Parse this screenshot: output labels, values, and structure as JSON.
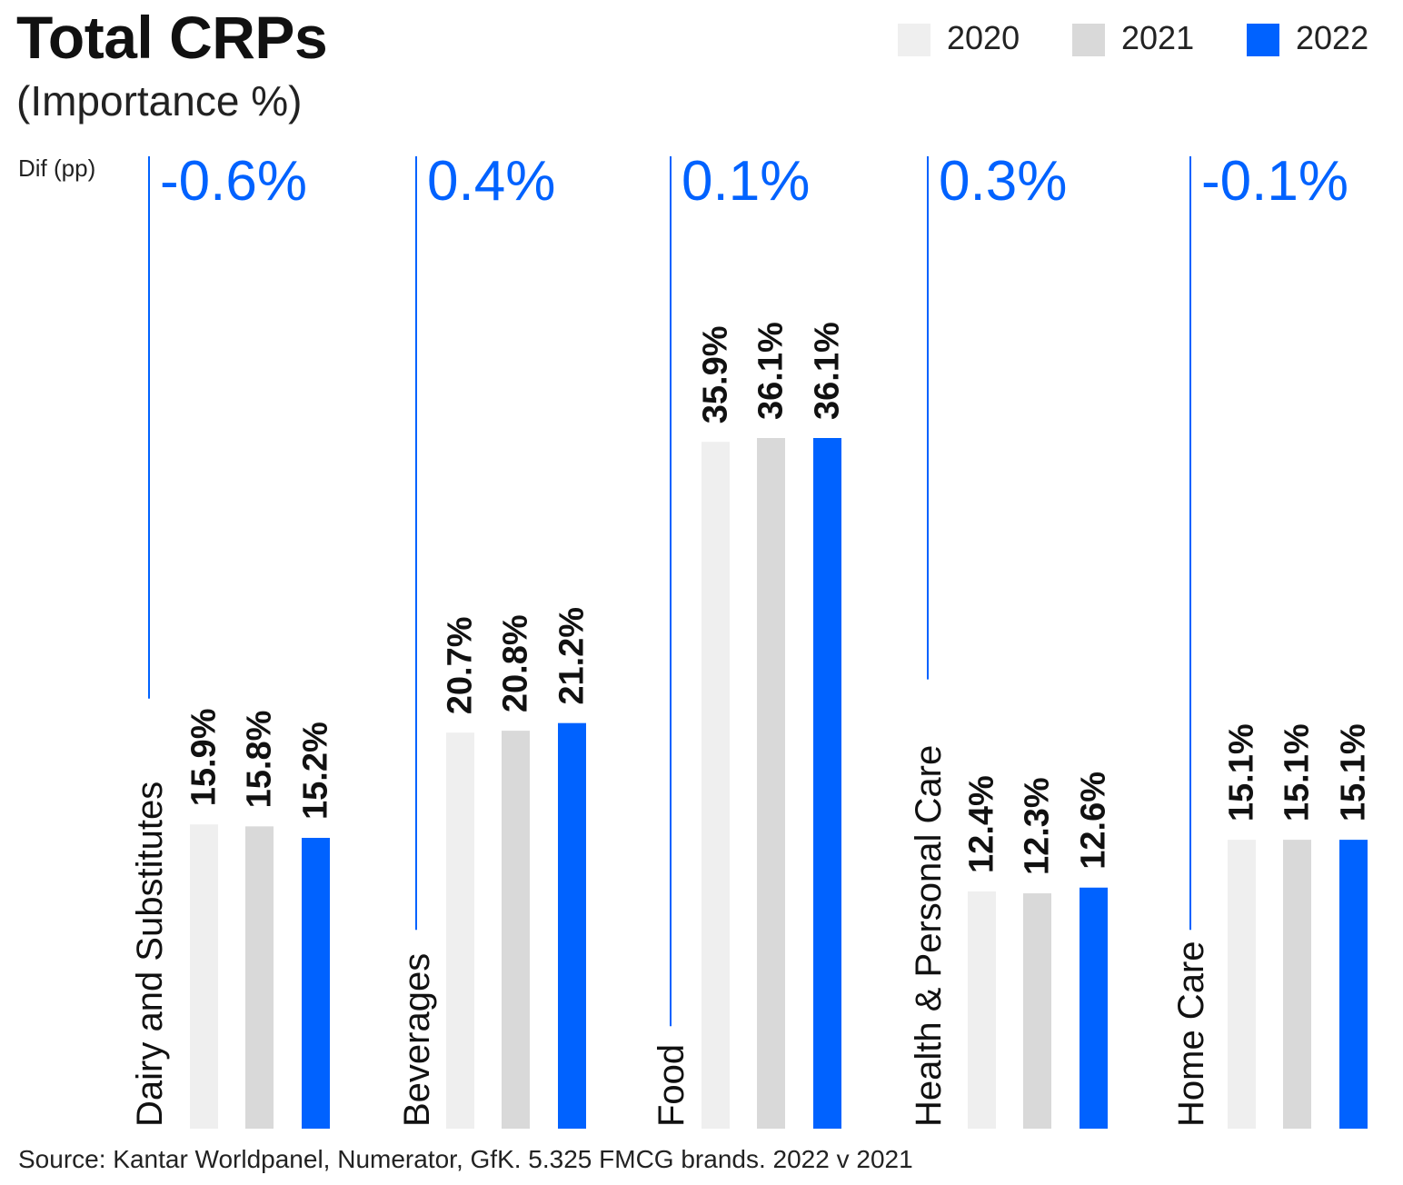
{
  "chart_data": {
    "type": "bar",
    "title": "Total CRPs",
    "subtitle": "(Importance %)",
    "diff_label": "Dif (pp)",
    "source": "Source: Kantar Worldpanel, Numerator, GfK. 5.325 FMCG brands. 2022 v 2021",
    "categories": [
      "Dairy and Substitutes",
      "Beverages",
      "Food",
      "Health & Personal Care",
      "Home Care"
    ],
    "series": [
      {
        "name": "2020",
        "color": "#efefef",
        "values": [
          15.9,
          20.7,
          35.9,
          12.4,
          15.1
        ],
        "labels": [
          "15.9%",
          "20.7%",
          "35.9%",
          "12.4%",
          "15.1%"
        ]
      },
      {
        "name": "2021",
        "color": "#d9d9d9",
        "values": [
          15.8,
          20.8,
          36.1,
          12.3,
          15.1
        ],
        "labels": [
          "15.8%",
          "20.8%",
          "36.1%",
          "12.3%",
          "15.1%"
        ]
      },
      {
        "name": "2022",
        "color": "#0062ff",
        "values": [
          15.2,
          21.2,
          36.1,
          12.6,
          15.1
        ],
        "labels": [
          "15.2%",
          "21.2%",
          "36.1%",
          "12.6%",
          "15.1%"
        ]
      }
    ],
    "differences": [
      "-0.6%",
      "0.4%",
      "0.1%",
      "0.3%",
      "-0.1%"
    ],
    "ylim": [
      0,
      36.1
    ],
    "grid": false,
    "legend_position": "top-right",
    "accent_color": "#0062ff"
  }
}
